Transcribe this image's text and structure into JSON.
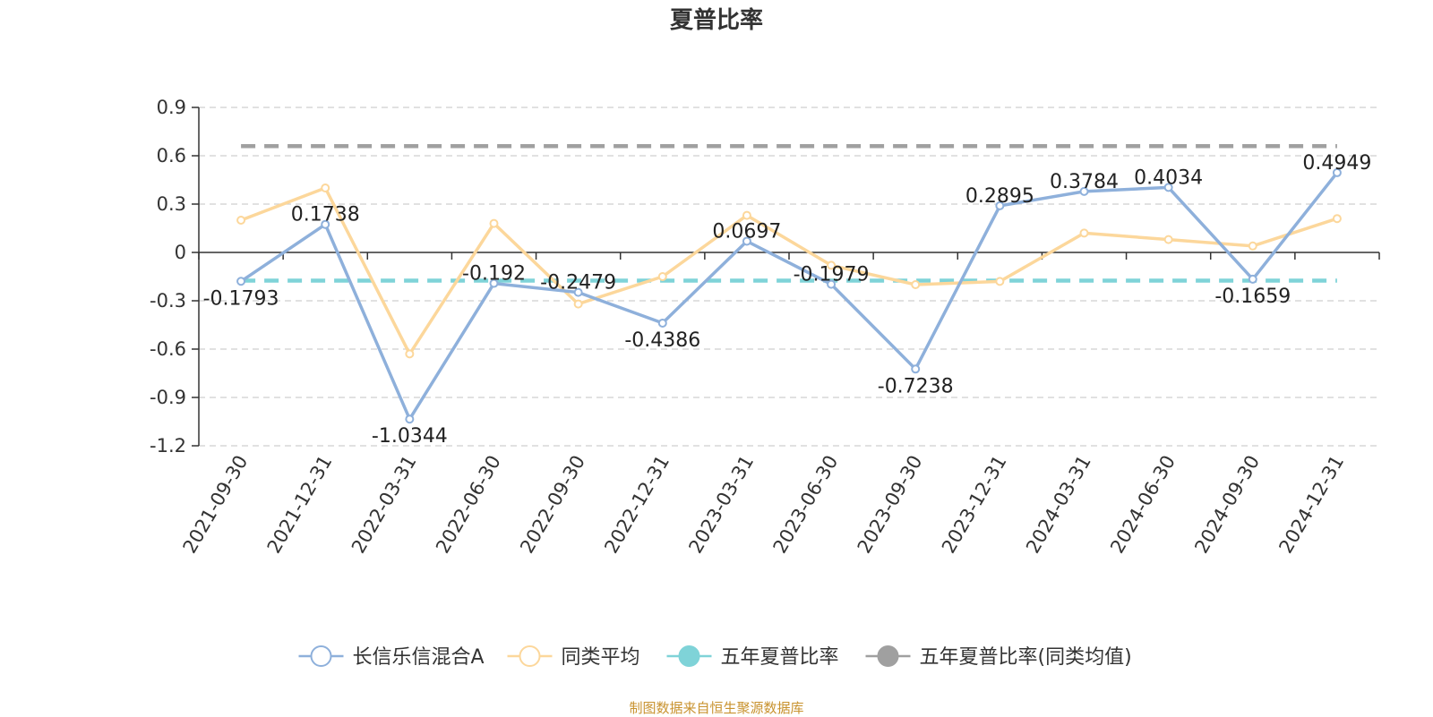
{
  "chart_data": {
    "type": "line",
    "title": "夏普比率",
    "categories": [
      "2021-09-30",
      "2021-12-31",
      "2022-03-31",
      "2022-06-30",
      "2022-09-30",
      "2022-12-31",
      "2023-03-31",
      "2023-06-30",
      "2023-09-30",
      "2023-12-31",
      "2024-03-31",
      "2024-06-30",
      "2024-09-30",
      "2024-12-31"
    ],
    "yticks": [
      "0.9",
      "0.6",
      "0.3",
      "0",
      "-0.3",
      "-0.6",
      "-0.9",
      "-1.2"
    ],
    "ylim": [
      -1.2,
      0.9
    ],
    "grid": true,
    "legend_position": "bottom",
    "series": [
      {
        "name": "长信乐信混合A",
        "color": "#8eb0db",
        "style": "line",
        "show_labels": true,
        "values": [
          -0.1793,
          0.1738,
          -1.0344,
          -0.192,
          -0.2479,
          -0.4386,
          0.0697,
          -0.1979,
          -0.7238,
          0.2895,
          0.3784,
          0.4034,
          -0.1659,
          0.4949
        ]
      },
      {
        "name": "同类平均",
        "color": "#fcd79b",
        "style": "line",
        "show_labels": false,
        "values": [
          0.2,
          0.4,
          -0.63,
          0.18,
          -0.32,
          -0.15,
          0.23,
          -0.08,
          -0.2,
          -0.18,
          0.12,
          0.08,
          0.04,
          0.21
        ]
      },
      {
        "name": "五年夏普比率",
        "color": "#7fd3d8",
        "style": "dashed",
        "legend_filled": true,
        "show_labels": false,
        "values": [
          -0.175,
          -0.175,
          -0.175,
          -0.175,
          -0.175,
          -0.175,
          -0.175,
          -0.175,
          -0.175,
          -0.175,
          -0.175,
          -0.175,
          -0.175,
          -0.175
        ]
      },
      {
        "name": "五年夏普比率(同类均值)",
        "color": "#a0a0a0",
        "style": "dashed",
        "legend_filled": true,
        "show_labels": false,
        "values": [
          0.66,
          0.66,
          0.66,
          0.66,
          0.66,
          0.66,
          0.66,
          0.66,
          0.66,
          0.66,
          0.66,
          0.66,
          0.66,
          0.66
        ]
      }
    ]
  },
  "footer": {
    "source": "制图数据来自恒生聚源数据库"
  }
}
